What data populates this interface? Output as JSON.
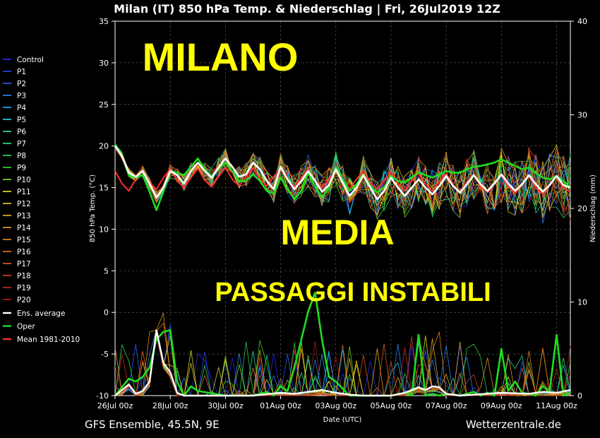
{
  "header": {
    "title": "Milan  (IT)  850 hPa Temp. & Niederschlag | Fri, 26Jul2019 12Z"
  },
  "footer": {
    "left": "GFS Ensemble, 45.5N, 9E",
    "right": "Wetterzentrale.de"
  },
  "overlay_text": {
    "line1": "MILANO",
    "line2": "MEDIA",
    "line3": "PASSAGGI INSTABILI"
  },
  "chart_data": {
    "type": "line",
    "xlabel": "Date (UTC)",
    "ylabel": "850 hPa Temp. (°C)",
    "ylabel_right": "Niederschlag (mm)",
    "ylim": [
      -10,
      35
    ],
    "ylim_right": [
      0,
      40
    ],
    "xlim_days": [
      0,
      16.5
    ],
    "x_ticks": [
      "26Jul 00z",
      "28Jul 00z",
      "30Jul 00z",
      "01Aug 00z",
      "03Aug 00z",
      "05Aug 00z",
      "07Aug 00z",
      "09Aug 00z",
      "11Aug 00z"
    ],
    "y_ticks": [
      "35",
      "30",
      "25",
      "20",
      "15",
      "10",
      "5",
      "0",
      "-5",
      "-10"
    ],
    "y_ticks_right": [
      "40",
      "30",
      "20",
      "10",
      "0"
    ],
    "grid": true,
    "legend_position": "left",
    "legend": [
      {
        "name": "Control",
        "color": "#2a2aff"
      },
      {
        "name": "P1",
        "color": "#2848ff"
      },
      {
        "name": "P2",
        "color": "#2a66ff"
      },
      {
        "name": "P3",
        "color": "#2a8cff"
      },
      {
        "name": "P4",
        "color": "#2ab0ff"
      },
      {
        "name": "P5",
        "color": "#28d8e8"
      },
      {
        "name": "P6",
        "color": "#28e8b0"
      },
      {
        "name": "P7",
        "color": "#28e888"
      },
      {
        "name": "P8",
        "color": "#30e050"
      },
      {
        "name": "P9",
        "color": "#40e030"
      },
      {
        "name": "P10",
        "color": "#80e020"
      },
      {
        "name": "P11",
        "color": "#f0f020"
      },
      {
        "name": "P12",
        "color": "#f0d020"
      },
      {
        "name": "P13",
        "color": "#f0b820"
      },
      {
        "name": "P14",
        "color": "#f0a020"
      },
      {
        "name": "P15",
        "color": "#f08c20"
      },
      {
        "name": "P16",
        "color": "#f07820"
      },
      {
        "name": "P17",
        "color": "#e86020"
      },
      {
        "name": "P18",
        "color": "#e04820"
      },
      {
        "name": "P19",
        "color": "#d03020"
      },
      {
        "name": "P20",
        "color": "#b82020"
      },
      {
        "name": "Ens. average",
        "color": "#ffffff"
      },
      {
        "name": "Oper",
        "color": "#20dd20"
      },
      {
        "name": "Mean 1981-2010",
        "color": "#ff3030"
      }
    ],
    "temp_mean_series": {
      "name": "Ens. average",
      "x_days": [
        0,
        0.25,
        0.5,
        0.75,
        1,
        1.25,
        1.5,
        1.75,
        2,
        2.25,
        2.5,
        2.75,
        3,
        3.25,
        3.5,
        3.75,
        4,
        4.25,
        4.5,
        4.75,
        5,
        5.25,
        5.5,
        5.75,
        6,
        6.25,
        6.5,
        6.75,
        7,
        7.25,
        7.5,
        7.75,
        8,
        8.25,
        8.5,
        8.75,
        9,
        9.25,
        9.5,
        9.75,
        10,
        10.25,
        10.5,
        10.75,
        11,
        11.25,
        11.5,
        11.75,
        12,
        12.25,
        12.5,
        12.75,
        13,
        13.25,
        13.5,
        13.75,
        14,
        14.25,
        14.5,
        14.75,
        15,
        15.25,
        15.5,
        15.75,
        16,
        16.25,
        16.5
      ],
      "values": [
        20,
        18.8,
        16.8,
        16.3,
        17,
        15.5,
        13.8,
        15,
        17,
        16.5,
        15.5,
        17,
        18,
        17,
        16.2,
        17.4,
        18.5,
        17.5,
        16.3,
        16.6,
        18,
        17.2,
        15.8,
        14.8,
        17.5,
        16,
        14.8,
        15.8,
        17,
        15.8,
        14.5,
        15.3,
        17.2,
        15.6,
        14,
        15,
        16.5,
        15,
        13.6,
        14.6,
        16.2,
        15,
        14,
        15,
        16,
        15,
        14.2,
        15.2,
        16.4,
        15.2,
        14.4,
        15.4,
        16.5,
        15.4,
        14.6,
        15.5,
        16.6,
        15.5,
        14.6,
        15.4,
        16.5,
        15.4,
        14.5,
        15.3,
        16.4,
        15.3,
        15
      ]
    },
    "temp_oper_series": {
      "name": "Oper",
      "x_days": [
        0,
        0.25,
        0.5,
        0.75,
        1,
        1.25,
        1.5,
        1.75,
        2,
        2.25,
        2.5,
        2.75,
        3,
        3.25,
        3.5,
        3.75,
        4,
        4.25,
        4.5,
        4.75,
        5,
        5.25,
        5.5,
        5.75,
        6,
        6.25,
        6.5,
        6.75,
        7,
        7.25,
        7.5,
        7.75,
        8,
        8.25,
        8.5,
        8.75,
        9,
        9.25,
        9.5,
        9.75,
        10,
        10.25,
        10.5,
        10.75,
        11,
        11.25,
        11.5,
        11.75,
        12,
        12.25,
        12.5,
        12.75,
        13,
        13.25,
        13.5,
        13.75,
        14,
        14.25,
        14.5,
        14.75,
        15,
        15.25,
        15.5,
        15.75,
        16,
        16.25,
        16.5
      ],
      "values": [
        20.2,
        19,
        16.5,
        16.2,
        16.5,
        14.5,
        12.3,
        14.5,
        17,
        16.8,
        16.5,
        17.5,
        18.5,
        17.2,
        16.3,
        17.3,
        18,
        17,
        15.8,
        15.8,
        16.6,
        15.8,
        14.6,
        14.3,
        16.2,
        14.8,
        13.6,
        14.6,
        16.8,
        15.2,
        13.8,
        15,
        17.5,
        16,
        14.6,
        15.4,
        16.6,
        15.2,
        14.4,
        15,
        16.4,
        15.8,
        15.6,
        16.2,
        16.8,
        16.5,
        16.2,
        16.6,
        17,
        16.8,
        16.8,
        17.2,
        17.5,
        17.6,
        17.8,
        18,
        18.4,
        18,
        17.6,
        17.2,
        17.4,
        16.8,
        16.2,
        16,
        16.4,
        15.8,
        15
      ]
    },
    "temp_climate_series": {
      "name": "Mean 1981-2010",
      "x_days": [
        0,
        0.25,
        0.5,
        0.75,
        1,
        1.25,
        1.5,
        1.75,
        2,
        2.25,
        2.5,
        2.75,
        3,
        3.25,
        3.5,
        3.75,
        4,
        4.25,
        4.5,
        4.75,
        5,
        5.25,
        5.5,
        5.75,
        6,
        6.25,
        6.5,
        6.75,
        7,
        7.25,
        7.5,
        7.75,
        8,
        8.25,
        8.5,
        8.75,
        9,
        9.25,
        9.5,
        9.75,
        10,
        10.25,
        10.5,
        10.75,
        11,
        11.25,
        11.5,
        11.75,
        12,
        12.25,
        12.5,
        12.75,
        13,
        13.25,
        13.5,
        13.75,
        14,
        14.25,
        14.5,
        14.75,
        15,
        15.25,
        15.5,
        15.75,
        16,
        16.25,
        16.5
      ],
      "values": [
        17,
        15.5,
        14.6,
        16,
        17,
        15.6,
        14.8,
        16.2,
        17.2,
        15.8,
        15,
        16.2,
        17.3,
        15.9,
        15.1,
        16.3,
        17.4,
        16,
        15.2,
        16.4,
        17.4,
        16,
        15.2,
        16.3,
        17.3,
        15.9,
        15.1,
        16.2,
        17.2,
        15.8,
        15,
        16.1,
        17.1,
        15.7,
        14.9,
        16,
        17,
        15.6,
        14.8,
        15.9,
        16.9,
        15.5,
        14.7,
        15.8,
        16.8,
        15.4,
        14.6,
        15.7,
        16.7,
        15.3,
        14.5,
        15.6,
        16.6,
        15.2,
        14.4,
        15.5,
        16.5,
        15.1,
        14.3,
        15.4,
        16.4,
        15,
        14.2,
        15.3,
        16.3,
        14.9,
        14.5
      ]
    },
    "precip_mean_series": {
      "name": "Ens. average (Niederschlag)",
      "x_days": [
        0,
        0.5,
        0.75,
        1,
        1.25,
        1.5,
        1.75,
        2,
        2.25,
        2.5,
        3,
        4,
        5,
        6,
        6.5,
        7,
        7.5,
        8,
        8.5,
        9,
        10,
        10.5,
        11,
        11.25,
        11.5,
        11.75,
        12,
        12.5,
        13,
        14,
        15,
        15.5,
        16,
        16.5
      ],
      "values": [
        0,
        1.2,
        0.2,
        0.5,
        1.5,
        7,
        3.5,
        2.5,
        0.3,
        0,
        0,
        0,
        0,
        0.3,
        0.2,
        0.4,
        0.6,
        0.3,
        0.1,
        0,
        0,
        0.3,
        0.9,
        0.6,
        1,
        0.9,
        0.2,
        0,
        0.1,
        0.3,
        0.2,
        0.4,
        0.3,
        0.6
      ]
    },
    "precip_oper_series": {
      "name": "Oper (Niederschlag)",
      "x_days": [
        0,
        0.5,
        0.75,
        1,
        1.25,
        1.5,
        1.75,
        2,
        2.25,
        2.5,
        2.75,
        3,
        4,
        5,
        5.5,
        5.75,
        6,
        6.25,
        6.5,
        6.75,
        7,
        7.25,
        7.5,
        7.75,
        8,
        8.5,
        9,
        10,
        10.5,
        10.75,
        11,
        11.25,
        11.5,
        11.75,
        12,
        12.5,
        13,
        13.25,
        13.5,
        13.75,
        14,
        14.25,
        14.5,
        14.75,
        15,
        15.25,
        15.5,
        15.75,
        16,
        16.25,
        16.5
      ],
      "values": [
        0,
        1.8,
        1.5,
        2,
        3,
        6,
        6.8,
        7,
        1.5,
        0,
        1,
        0.5,
        0,
        0,
        0.4,
        0,
        1,
        0.5,
        3,
        6,
        9,
        11,
        6,
        2,
        1.5,
        0,
        0,
        0,
        0.3,
        0,
        6.5,
        0,
        0.2,
        0,
        0.2,
        0,
        0.4,
        0,
        0.3,
        0,
        5,
        0.5,
        1.5,
        0.3,
        0.2,
        0,
        1,
        0.5,
        6.5,
        0,
        0.3
      ]
    }
  }
}
